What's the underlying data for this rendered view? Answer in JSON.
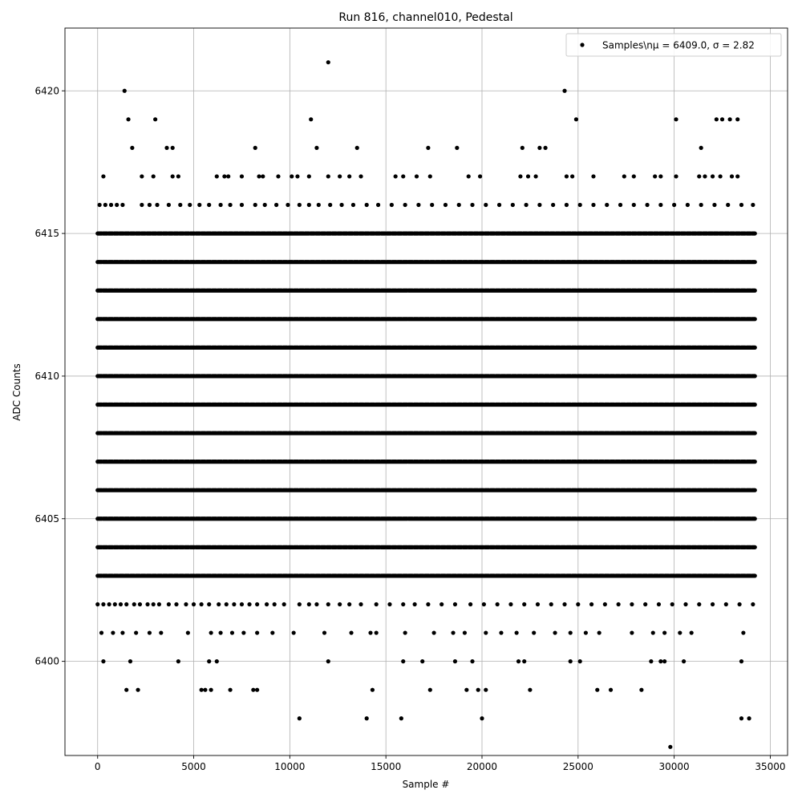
{
  "chart_data": {
    "type": "scatter",
    "title": "Run 816, channel010, Pedestal",
    "xlabel": "Sample #",
    "ylabel": "ADC Counts",
    "xlim": [
      -1700,
      35900
    ],
    "ylim": [
      6396.7,
      6422.2
    ],
    "xticks": [
      0,
      5000,
      10000,
      15000,
      20000,
      25000,
      30000,
      35000
    ],
    "yticks": [
      6400,
      6405,
      6410,
      6415,
      6420
    ],
    "grid": true,
    "legend_position": "top-right",
    "legend_label": "Samples\\nμ = 6409.0, σ = 2.82",
    "marker_color": "#000000",
    "series": [
      {
        "name": "Samples\\nμ = 6409.0, σ = 2.82",
        "n_samples": 34200,
        "dense_levels": [
          6403,
          6404,
          6405,
          6406,
          6407,
          6408,
          6409,
          6410,
          6411,
          6412,
          6413,
          6414,
          6415
        ],
        "sparse_levels": [
          {
            "y": 6402,
            "x": [
              0,
              300,
              600,
              900,
              1200,
              1500,
              1900,
              2200,
              2600,
              2900,
              3200,
              3700,
              4100,
              4600,
              5000,
              5400,
              5800,
              6300,
              6700,
              7100,
              7500,
              7900,
              8300,
              8800,
              9200,
              9700,
              10500,
              11000,
              11400,
              12000,
              12600,
              13100,
              13700,
              14500,
              15200,
              15900,
              16500,
              17200,
              17900,
              18600,
              19400,
              20100,
              20800,
              21500,
              22200,
              22900,
              23600,
              24300,
              25000,
              25700,
              26400,
              27100,
              27800,
              28500,
              29200,
              29900,
              30600,
              31300,
              32000,
              32700,
              33400,
              34100
            ]
          },
          {
            "y": 6401,
            "x": [
              200,
              800,
              1300,
              2000,
              2700,
              3300,
              4700,
              5900,
              6400,
              7000,
              7600,
              8300,
              9100,
              10200,
              11800,
              13200,
              14200,
              14500,
              16000,
              17500,
              18500,
              19100,
              20200,
              21000,
              21800,
              22700,
              23800,
              24600,
              25400,
              26100,
              27800,
              28900,
              29500,
              30300,
              30900,
              33600
            ]
          },
          {
            "y": 6400,
            "x": [
              300,
              1700,
              4200,
              5800,
              6200,
              12000,
              15900,
              16900,
              18600,
              19500,
              21900,
              22200,
              24600,
              25100,
              28800,
              29300,
              29500,
              30500,
              33500
            ]
          },
          {
            "y": 6399,
            "x": [
              1500,
              2100,
              5400,
              5600,
              5900,
              6900,
              8100,
              8300,
              14300,
              17300,
              19200,
              19800,
              20200,
              22500,
              26000,
              26700,
              28300
            ]
          },
          {
            "y": 6398,
            "x": [
              10500,
              14000,
              15800,
              20000,
              33500,
              33900
            ]
          },
          {
            "y": 6397,
            "x": [
              29800
            ]
          },
          {
            "y": 6416,
            "x": [
              100,
              400,
              700,
              1000,
              1300,
              2300,
              2700,
              3100,
              3700,
              4300,
              4800,
              5300,
              5800,
              6400,
              6900,
              7500,
              8200,
              8700,
              9300,
              9900,
              10500,
              11000,
              11500,
              12100,
              12700,
              13300,
              14000,
              14600,
              15300,
              16000,
              16700,
              17400,
              18100,
              18800,
              19500,
              20200,
              20900,
              21600,
              22300,
              23000,
              23700,
              24400,
              25100,
              25800,
              26500,
              27200,
              27900,
              28600,
              29300,
              30000,
              30700,
              31400,
              32100,
              32800,
              33500,
              34100
            ]
          },
          {
            "y": 6417,
            "x": [
              300,
              2300,
              2900,
              3900,
              4200,
              6200,
              6600,
              6800,
              7500,
              8400,
              8600,
              9400,
              10100,
              10400,
              11000,
              12000,
              12600,
              13100,
              13700,
              15500,
              15900,
              16600,
              17300,
              19300,
              19900,
              22000,
              22400,
              22800,
              24400,
              24700,
              25800,
              27400,
              27900,
              29000,
              29300,
              30100,
              31300,
              31600,
              32000,
              32400,
              33000,
              33300
            ]
          },
          {
            "y": 6418,
            "x": [
              1800,
              3600,
              3900,
              8200,
              11400,
              13500,
              17200,
              18700,
              22100,
              23000,
              23300,
              31400
            ]
          },
          {
            "y": 6419,
            "x": [
              1600,
              3000,
              11100,
              24900,
              30100,
              32200,
              32500,
              32900,
              33300
            ]
          },
          {
            "y": 6420,
            "x": [
              1400,
              24300
            ]
          },
          {
            "y": 6421,
            "x": [
              12000
            ]
          }
        ]
      }
    ]
  }
}
